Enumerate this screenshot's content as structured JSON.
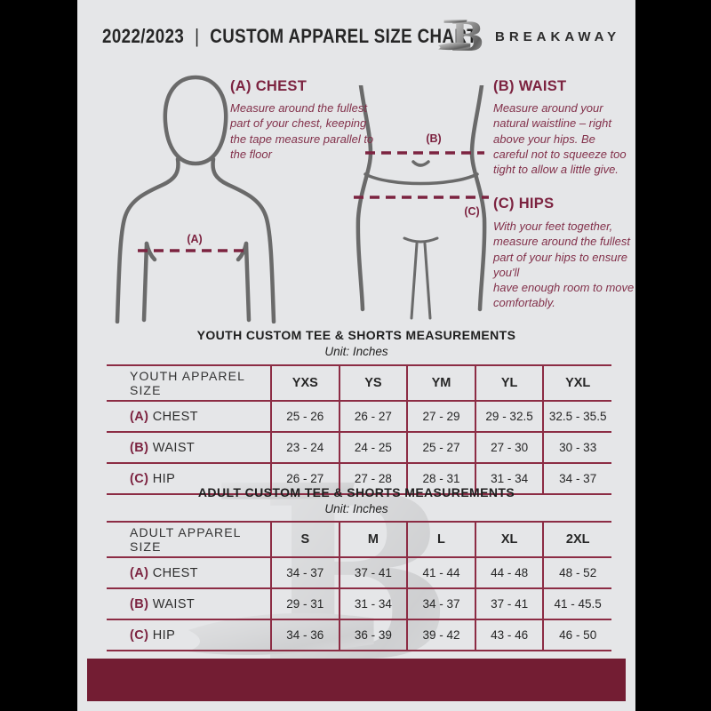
{
  "header": {
    "year": "2022/2023",
    "separator": "|",
    "title": "CUSTOM APPAREL SIZE CHART",
    "brand": "BREAKAWAY",
    "logo_letter": "B"
  },
  "instructions": {
    "chest": {
      "label": "(A) CHEST",
      "text": "Measure around the fullest part of your chest, keeping the tape measure parallel to the floor"
    },
    "waist": {
      "label": "(B) WAIST",
      "text": "Measure around your natural waistline – right above your hips. Be careful not to squeeze too tight to allow a little give."
    },
    "hips": {
      "label": "(C) HIPS",
      "text": "With your feet together, measure around the fullest part of your hips to ensure you'll\nhave enough room to move comfortably."
    }
  },
  "diagram_labels": {
    "chest": "(A)",
    "waist": "(B)",
    "hips": "(C)"
  },
  "youth": {
    "title": "YOUTH CUSTOM TEE & SHORTS MEASUREMENTS",
    "unit": "Unit: Inches",
    "header": [
      "YOUTH APPAREL SIZE",
      "YXS",
      "YS",
      "YM",
      "YL",
      "YXL"
    ],
    "rows": [
      {
        "prefix": "(A)",
        "label": "CHEST",
        "values": [
          "25 - 26",
          "26 - 27",
          "27 - 29",
          "29 - 32.5",
          "32.5 - 35.5"
        ]
      },
      {
        "prefix": "(B)",
        "label": "WAIST",
        "values": [
          "23 - 24",
          "24 - 25",
          "25 - 27",
          "27 - 30",
          "30 - 33"
        ]
      },
      {
        "prefix": "(C)",
        "label": "HIP",
        "values": [
          "26 - 27",
          "27 - 28",
          "28 - 31",
          "31 - 34",
          "34 - 37"
        ]
      }
    ]
  },
  "adult": {
    "title": "ADULT CUSTOM TEE & SHORTS MEASUREMENTS",
    "unit": "Unit: Inches",
    "header": [
      "ADULT APPAREL SIZE",
      "S",
      "M",
      "L",
      "XL",
      "2XL"
    ],
    "rows": [
      {
        "prefix": "(A)",
        "label": "CHEST",
        "values": [
          "34 - 37",
          "37 - 41",
          "41 - 44",
          "44 - 48",
          "48 - 52"
        ]
      },
      {
        "prefix": "(B)",
        "label": "WAIST",
        "values": [
          "29 - 31",
          "31 - 34",
          "34 - 37",
          "37 - 41",
          "41 - 45.5"
        ]
      },
      {
        "prefix": "(C)",
        "label": "HIP",
        "values": [
          "34 - 36",
          "36 - 39",
          "39 - 42",
          "43 - 46",
          "46 - 50"
        ]
      }
    ]
  },
  "colors": {
    "maroon_accent": "#7c2340",
    "maroon_line": "#8c2c44",
    "footer_bar": "#731d33",
    "page_background": "#e5e6e8",
    "frame_background": "#000000",
    "figure_outline": "#6a6a6a",
    "text_dark": "#262626"
  }
}
